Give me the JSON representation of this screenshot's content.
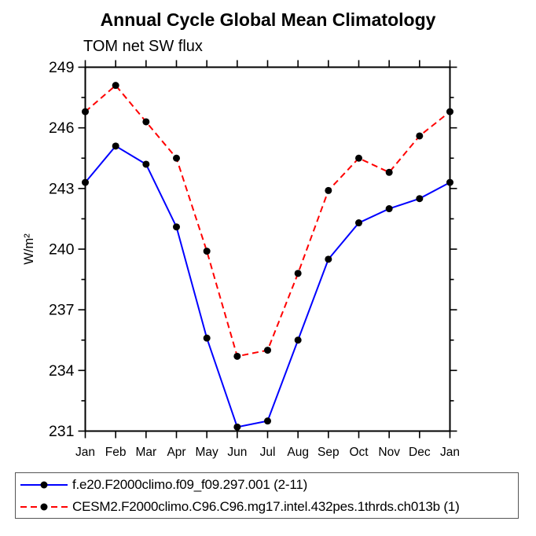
{
  "title": "Annual Cycle Global Mean Climatology",
  "subtitle": "TOM net SW flux",
  "chart_data": {
    "type": "line",
    "x": [
      "Jan",
      "Feb",
      "Mar",
      "Apr",
      "May",
      "Jun",
      "Jul",
      "Aug",
      "Sep",
      "Oct",
      "Nov",
      "Dec",
      "Jan"
    ],
    "xlabel": "",
    "ylabel": "W/m²",
    "ylim": [
      231,
      249
    ],
    "yticks": [
      231,
      234,
      237,
      240,
      243,
      246,
      249
    ],
    "ytick_minor_step": 1.5,
    "grid": false,
    "legend_position": "bottom-left",
    "series": [
      {
        "name": "f.e20.F2000climo.f09_f09.297.001 (2-11)",
        "color": "#0000ff",
        "style": "solid",
        "marker": "filled-circle",
        "marker_color": "#000000",
        "values": [
          243.3,
          245.1,
          244.2,
          241.1,
          235.6,
          231.2,
          231.5,
          235.5,
          239.5,
          241.3,
          242.0,
          242.5,
          243.3
        ]
      },
      {
        "name": "CESM2.F2000climo.C96.C96.mg17.intel.432pes.1thrds.ch013b (1)",
        "color": "#ff0000",
        "style": "dashed",
        "marker": "filled-circle",
        "marker_color": "#000000",
        "values": [
          246.8,
          248.1,
          246.3,
          244.5,
          239.9,
          234.7,
          235.0,
          238.8,
          242.9,
          244.5,
          243.8,
          245.6,
          246.8
        ]
      }
    ]
  },
  "colors": {
    "background": "#ffffff",
    "axis": "#000000",
    "text": "#000000",
    "legend_border": "#555555",
    "series_1": "#0000ff",
    "series_2": "#ff0000",
    "marker": "#000000"
  }
}
